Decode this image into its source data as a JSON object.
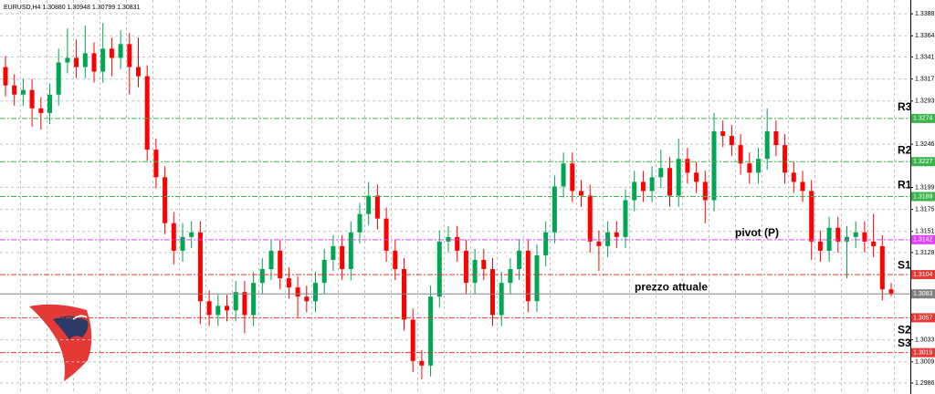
{
  "chart_data": {
    "type": "candlestick",
    "title": "EURUSD,H4  1.30880 1.30948 1.30799 1.30831",
    "ylim": [
      1.2974,
      1.3403
    ],
    "yticks": [
      1.3388,
      1.3364,
      1.3341,
      1.3317,
      1.3293,
      1.3246,
      1.3199,
      1.3175,
      1.3151,
      1.3128,
      1.3033,
      1.3009,
      1.2986
    ],
    "grid": true,
    "up_color": "#00a651",
    "down_color": "#ff0000",
    "open": [
      1.333,
      1.331,
      1.33,
      1.3305,
      1.3285,
      1.328,
      1.33,
      1.3335,
      1.334,
      1.333,
      1.3345,
      1.3325,
      1.335,
      1.334,
      1.3355,
      1.333,
      1.332,
      1.324,
      1.321,
      1.316,
      1.313,
      1.3145,
      1.315,
      1.3075,
      1.306,
      1.307,
      1.3065,
      1.3085,
      1.306,
      1.3095,
      1.311,
      1.313,
      1.31,
      1.309,
      1.308,
      1.3075,
      1.3095,
      1.312,
      1.3135,
      1.311,
      1.315,
      1.317,
      1.319,
      1.3165,
      1.313,
      1.311,
      1.3055,
      1.301,
      1.3005,
      1.308,
      1.314,
      1.3145,
      1.313,
      1.3095,
      1.312,
      1.311,
      1.306,
      1.3095,
      1.311,
      1.313,
      1.3075,
      1.3125,
      1.315,
      1.32,
      1.3225,
      1.3195,
      1.319,
      1.314,
      1.3135,
      1.315,
      1.3145,
      1.3185,
      1.3205,
      1.3195,
      1.321,
      1.322,
      1.319,
      1.323,
      1.3215,
      1.3205,
      1.3185,
      1.326,
      1.3255,
      1.3245,
      1.3225,
      1.3215,
      1.323,
      1.326,
      1.3245,
      1.3215,
      1.3205,
      1.3195,
      1.314,
      1.313,
      1.3155,
      1.314,
      1.3145,
      1.315,
      1.314,
      1.3135,
      1.3088
    ],
    "high": [
      1.3342,
      1.3322,
      1.3317,
      1.3317,
      1.3297,
      1.3312,
      1.335,
      1.3372,
      1.336,
      1.3375,
      1.3357,
      1.3378,
      1.3362,
      1.337,
      1.3367,
      1.3362,
      1.3332,
      1.3252,
      1.3222,
      1.3172,
      1.316,
      1.3162,
      1.3162,
      1.3087,
      1.3082,
      1.3082,
      1.3097,
      1.3097,
      1.3107,
      1.3122,
      1.3142,
      1.3142,
      1.3112,
      1.3102,
      1.3092,
      1.3107,
      1.3132,
      1.3147,
      1.3147,
      1.3162,
      1.3182,
      1.3205,
      1.3202,
      1.3177,
      1.3142,
      1.3122,
      1.3067,
      1.3022,
      1.3092,
      1.3152,
      1.3157,
      1.3157,
      1.3142,
      1.3132,
      1.3132,
      1.3122,
      1.3107,
      1.3122,
      1.3142,
      1.3142,
      1.3137,
      1.3162,
      1.3212,
      1.3237,
      1.3237,
      1.3207,
      1.3202,
      1.3152,
      1.3162,
      1.3162,
      1.3197,
      1.3217,
      1.3217,
      1.3222,
      1.324,
      1.3232,
      1.3252,
      1.3242,
      1.3227,
      1.3217,
      1.328,
      1.3272,
      1.3267,
      1.3257,
      1.3237,
      1.3242,
      1.3285,
      1.3272,
      1.3257,
      1.3227,
      1.3217,
      1.3207,
      1.3152,
      1.3167,
      1.3167,
      1.3157,
      1.3162,
      1.3162,
      1.317,
      1.3147,
      1.3095
    ],
    "low": [
      1.3298,
      1.3288,
      1.3288,
      1.3265,
      1.3262,
      1.3268,
      1.3288,
      1.3323,
      1.3318,
      1.3318,
      1.3313,
      1.3313,
      1.332,
      1.3328,
      1.33,
      1.3308,
      1.3228,
      1.3198,
      1.3148,
      1.3115,
      1.3118,
      1.3133,
      1.305,
      1.3048,
      1.3048,
      1.3053,
      1.3053,
      1.304,
      1.3048,
      1.3083,
      1.3098,
      1.3088,
      1.3078,
      1.3058,
      1.3063,
      1.3063,
      1.3083,
      1.3108,
      1.3098,
      1.3098,
      1.3138,
      1.3158,
      1.3153,
      1.3118,
      1.3098,
      1.3043,
      1.2998,
      1.299,
      1.2993,
      1.3068,
      1.3128,
      1.3118,
      1.3083,
      1.3083,
      1.3098,
      1.3048,
      1.3048,
      1.3083,
      1.3098,
      1.3063,
      1.3063,
      1.3113,
      1.3138,
      1.3188,
      1.3183,
      1.3178,
      1.3128,
      1.3108,
      1.3123,
      1.3133,
      1.3133,
      1.3173,
      1.3183,
      1.3183,
      1.3198,
      1.3178,
      1.3178,
      1.3203,
      1.3193,
      1.316,
      1.3173,
      1.3243,
      1.3233,
      1.3213,
      1.3203,
      1.3203,
      1.3218,
      1.3233,
      1.3203,
      1.3193,
      1.3183,
      1.312,
      1.3118,
      1.3118,
      1.3128,
      1.31,
      1.3133,
      1.3128,
      1.3123,
      1.3076,
      1.308
    ],
    "close": [
      1.331,
      1.33,
      1.3305,
      1.3285,
      1.328,
      1.33,
      1.3335,
      1.334,
      1.333,
      1.3345,
      1.3325,
      1.335,
      1.334,
      1.3355,
      1.333,
      1.332,
      1.324,
      1.321,
      1.316,
      1.313,
      1.3145,
      1.315,
      1.3075,
      1.306,
      1.307,
      1.3065,
      1.3085,
      1.306,
      1.3095,
      1.311,
      1.313,
      1.31,
      1.309,
      1.308,
      1.3075,
      1.3095,
      1.312,
      1.3135,
      1.311,
      1.315,
      1.317,
      1.319,
      1.3165,
      1.313,
      1.311,
      1.3055,
      1.301,
      1.3005,
      1.308,
      1.314,
      1.3145,
      1.313,
      1.3095,
      1.312,
      1.311,
      1.306,
      1.3095,
      1.311,
      1.313,
      1.3075,
      1.3125,
      1.315,
      1.32,
      1.3225,
      1.3195,
      1.319,
      1.314,
      1.3135,
      1.315,
      1.3145,
      1.3185,
      1.3205,
      1.3195,
      1.321,
      1.322,
      1.319,
      1.323,
      1.3215,
      1.3205,
      1.3185,
      1.326,
      1.3255,
      1.3245,
      1.3225,
      1.3215,
      1.323,
      1.326,
      1.3245,
      1.3215,
      1.3205,
      1.3195,
      1.314,
      1.313,
      1.3155,
      1.314,
      1.3145,
      1.315,
      1.314,
      1.3135,
      1.3088,
      1.3083
    ],
    "levels": [
      {
        "name": "R3",
        "value": 1.3274,
        "color": "#3cb44b"
      },
      {
        "name": "R2",
        "value": 1.3227,
        "color": "#3cb44b"
      },
      {
        "name": "R1",
        "value": 1.3189,
        "color": "#3cb44b"
      },
      {
        "name": "pivot (P)",
        "value": 1.3142,
        "color": "#e040fb"
      },
      {
        "name": "S1",
        "value": 1.3104,
        "color": "#e53935"
      },
      {
        "name": "prezzo attuale",
        "value": 1.3083,
        "color": "#808080"
      },
      {
        "name": "S2",
        "value": 1.3057,
        "color": "#e53935"
      },
      {
        "name": "S3",
        "value": 1.3019,
        "color": "#e53935"
      }
    ]
  }
}
